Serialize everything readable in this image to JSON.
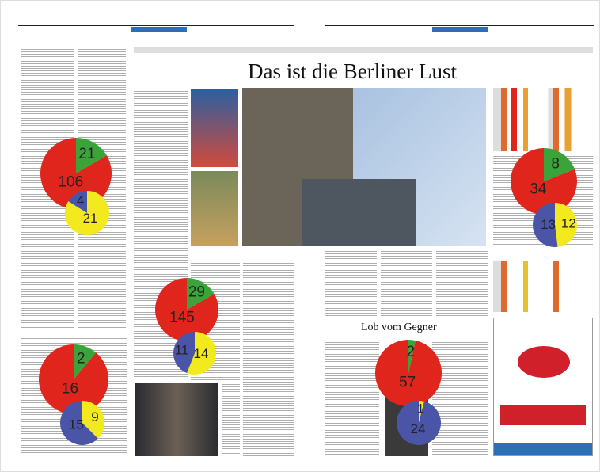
{
  "headline": "Das ist die Berliner Lust",
  "subheadline": "Lob vom Gegner",
  "pie_groups": [
    {
      "large": {
        "values": [
          21,
          106
        ],
        "colors": [
          "#3aa43a",
          "#e0261c"
        ]
      },
      "small": {
        "values": [
          21,
          4
        ],
        "colors": [
          "#f2ea1c",
          "#4a55a8"
        ]
      }
    },
    {
      "large": {
        "values": [
          2,
          16
        ],
        "colors": [
          "#3aa43a",
          "#e0261c"
        ]
      },
      "small": {
        "values": [
          9,
          15
        ],
        "colors": [
          "#f2ea1c",
          "#4a55a8"
        ]
      }
    },
    {
      "large": {
        "values": [
          29,
          145
        ],
        "colors": [
          "#3aa43a",
          "#e0261c"
        ]
      },
      "small": {
        "values": [
          14,
          11
        ],
        "colors": [
          "#f2ea1c",
          "#4a55a8"
        ]
      }
    },
    {
      "large": {
        "values": [
          8,
          34
        ],
        "colors": [
          "#3aa43a",
          "#e0261c"
        ]
      },
      "small": {
        "values": [
          12,
          13
        ],
        "colors": [
          "#f2ea1c",
          "#4a55a8"
        ]
      }
    },
    {
      "large": {
        "values": [
          2,
          57
        ],
        "colors": [
          "#3aa43a",
          "#e0261c"
        ]
      },
      "small": {
        "values": [
          1,
          24
        ],
        "colors": [
          "#f2ea1c",
          "#4a55a8"
        ]
      }
    }
  ]
}
